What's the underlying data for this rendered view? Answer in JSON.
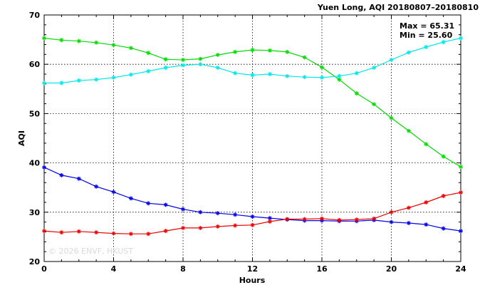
{
  "chart_data": {
    "type": "line",
    "title": "Yuen Long, AQI 20180807–20180810",
    "xlabel": "Hours",
    "ylabel": "AQI",
    "xlim": [
      0,
      24
    ],
    "ylim": [
      20,
      70
    ],
    "xticks": [
      0,
      4,
      8,
      12,
      16,
      20,
      24
    ],
    "yticks": [
      20,
      30,
      40,
      50,
      60,
      70
    ],
    "grid": true,
    "stats": {
      "max_label": "Max = 65.31",
      "min_label": "Min = 25.60"
    },
    "watermark": "© 2026  ENVF, HKUST",
    "x": [
      0,
      1,
      2,
      3,
      4,
      5,
      6,
      7,
      8,
      9,
      10,
      11,
      12,
      13,
      14,
      15,
      16,
      17,
      18,
      19,
      20,
      21,
      22,
      23,
      24
    ],
    "series": [
      {
        "color": "#00dd00",
        "values": [
          65.3,
          64.9,
          64.7,
          64.4,
          63.9,
          63.3,
          62.3,
          61.0,
          60.9,
          61.1,
          61.9,
          62.5,
          62.9,
          62.8,
          62.5,
          61.4,
          59.4,
          56.9,
          54.1,
          51.9,
          49.1,
          46.5,
          43.8,
          41.3,
          39.2
        ]
      },
      {
        "color": "#00e8e8",
        "values": [
          56.2,
          56.2,
          56.7,
          56.9,
          57.3,
          57.9,
          58.6,
          59.3,
          59.8,
          60.0,
          59.3,
          58.2,
          57.8,
          58.0,
          57.6,
          57.4,
          57.3,
          57.6,
          58.2,
          59.3,
          60.9,
          62.4,
          63.5,
          64.5,
          65.3
        ]
      },
      {
        "color": "#0000ee",
        "values": [
          39.1,
          37.5,
          36.8,
          35.2,
          34.1,
          32.8,
          31.8,
          31.5,
          30.6,
          30.0,
          29.8,
          29.5,
          29.1,
          28.8,
          28.5,
          28.3,
          28.3,
          28.2,
          28.2,
          28.4,
          28.0,
          27.8,
          27.5,
          26.7,
          26.2
        ]
      },
      {
        "color": "#ee0000",
        "values": [
          26.2,
          25.9,
          26.1,
          25.9,
          25.7,
          25.6,
          25.6,
          26.2,
          26.8,
          26.8,
          27.1,
          27.3,
          27.4,
          28.1,
          28.6,
          28.6,
          28.7,
          28.4,
          28.5,
          28.7,
          30.0,
          30.9,
          32.0,
          33.3,
          34.0
        ]
      }
    ]
  }
}
